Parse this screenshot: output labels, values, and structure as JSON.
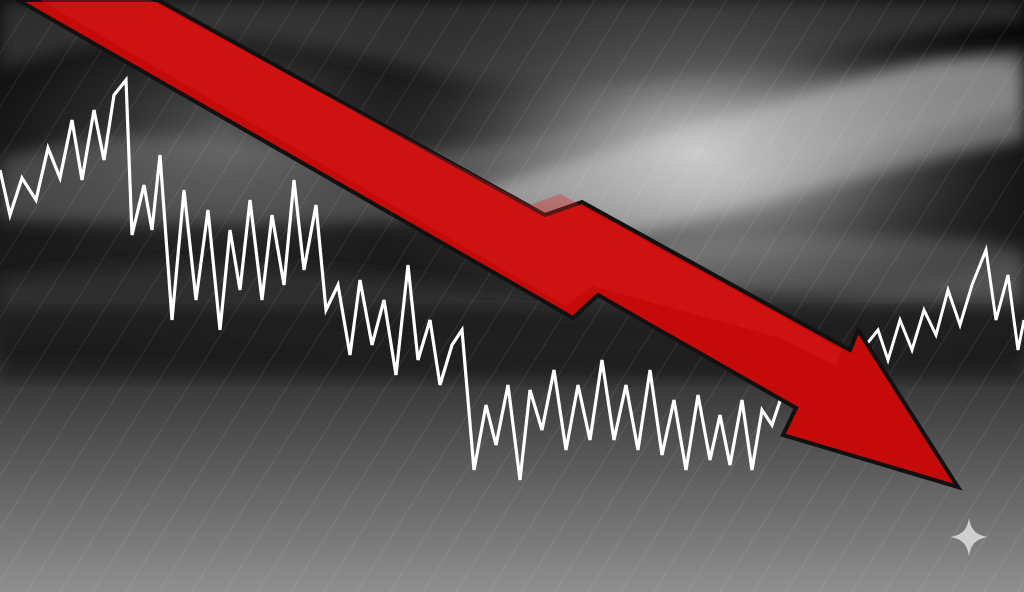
{
  "scene": {
    "description_kind": "photo-illustration",
    "subject": "downward-arrow-over-volatile-line",
    "colors": {
      "arrow_fill": "#c50a0a",
      "arrow_outline": "#111111",
      "line_stroke": "#ffffff",
      "sky_dark": "#0d0d0d",
      "sky_light": "#d8d8d8",
      "ground_top": "#202020",
      "ground_bottom": "#8f8f8f",
      "sparkle": "#d9d9d9"
    },
    "icons": [
      "sparkle-icon"
    ]
  }
}
